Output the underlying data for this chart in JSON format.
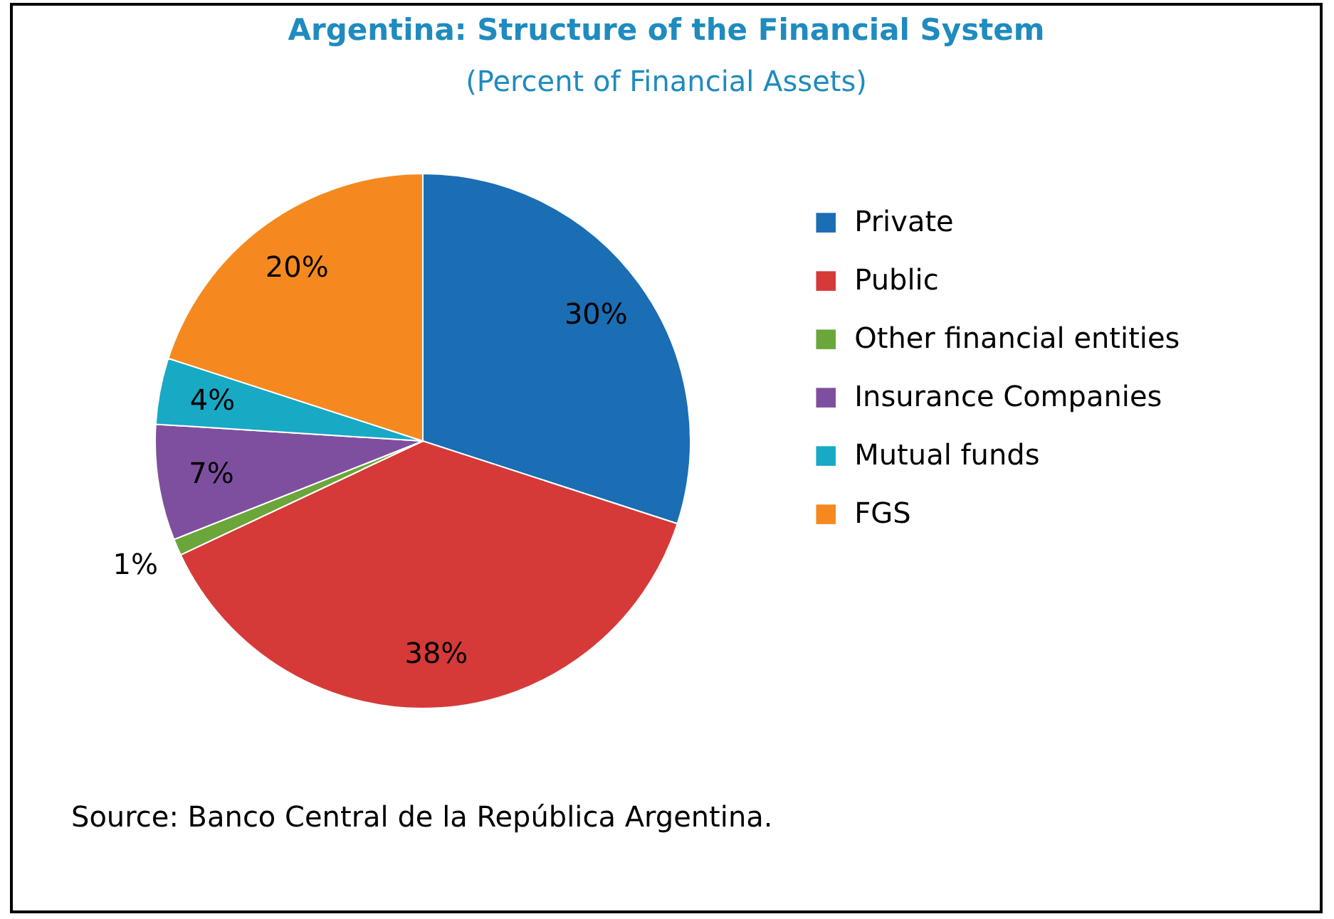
{
  "chart_data": {
    "type": "pie",
    "title": "Argentina: Structure of the Financial System",
    "subtitle": "(Percent of Financial Assets)",
    "categories": [
      "Private",
      "Public",
      "Other financial entities",
      "Insurance Companies",
      "Mutual funds",
      "FGS"
    ],
    "values": [
      30,
      38,
      1,
      7,
      4,
      20
    ],
    "colors": [
      "#1b6db4",
      "#d53a38",
      "#6aa63a",
      "#7f4f9f",
      "#18a9c5",
      "#f5891f"
    ],
    "value_labels": [
      "30%",
      "38%",
      "1%",
      "7%",
      "4%",
      "20%"
    ],
    "legend": "right",
    "annotations": [
      "Source: Banco Central de la República Argentina."
    ]
  }
}
